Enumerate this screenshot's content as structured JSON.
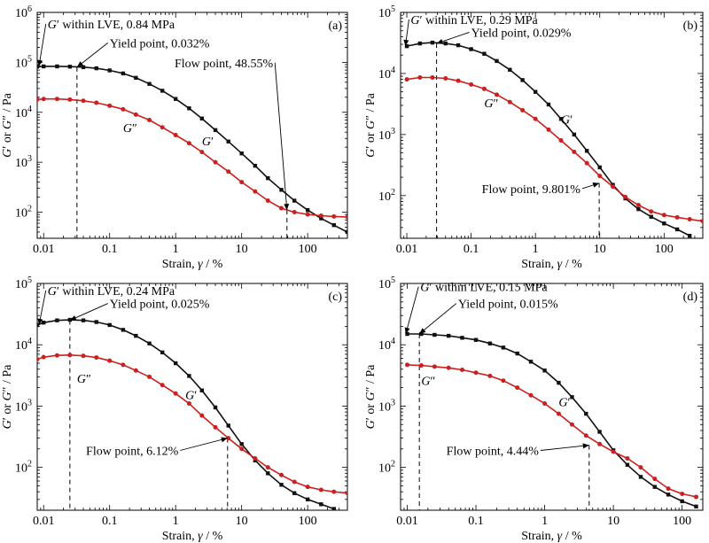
{
  "chart_data": [
    {
      "panel": "(a)",
      "type": "line",
      "xlabel_prefix": "Strain, ",
      "xlabel_var": "γ",
      "xlabel_unit": " / %",
      "ylabel": "G′ or G″ / Pa",
      "xscale": "log",
      "yscale": "log",
      "xlim": [
        0.008,
        400
      ],
      "ylim": [
        30,
        1000000
      ],
      "xticks": [
        0.01,
        0.1,
        1,
        10,
        100
      ],
      "xtick_labels": [
        "0.01",
        "0.1",
        "1",
        "10",
        "100"
      ],
      "yticks_exp": [
        2,
        3,
        4,
        5,
        6
      ],
      "series": [
        {
          "name": "G′",
          "color": "#111111",
          "marker": "square",
          "x": [
            0.008,
            0.01,
            0.016,
            0.025,
            0.04,
            0.063,
            0.1,
            0.16,
            0.25,
            0.4,
            0.63,
            1,
            1.6,
            2.5,
            4,
            6.3,
            10,
            16,
            25,
            40,
            63,
            100,
            160,
            250,
            400
          ],
          "y": [
            82000,
            83000,
            83000,
            82000,
            80000,
            76000,
            69000,
            60000,
            49000,
            37000,
            27000,
            18500,
            12000,
            7500,
            4400,
            2600,
            1500,
            850,
            480,
            280,
            170,
            110,
            75,
            55,
            40
          ]
        },
        {
          "name": "G″",
          "color": "#cc1f1f",
          "marker": "circle",
          "x": [
            0.008,
            0.01,
            0.016,
            0.025,
            0.04,
            0.063,
            0.1,
            0.16,
            0.25,
            0.4,
            0.63,
            1,
            1.6,
            2.5,
            4,
            6.3,
            10,
            16,
            25,
            40,
            63,
            100,
            160,
            250,
            400
          ],
          "y": [
            18000,
            18500,
            18500,
            18000,
            17000,
            15500,
            13500,
            11500,
            9000,
            7000,
            5000,
            3500,
            2400,
            1600,
            1000,
            650,
            400,
            260,
            170,
            120,
            100,
            90,
            85,
            82,
            80
          ]
        }
      ],
      "series_labels": [
        {
          "text": "G″",
          "x": 0.16,
          "y": 4000
        },
        {
          "text": "G′",
          "x": 2.5,
          "y": 2200
        }
      ],
      "annotations": [
        {
          "label": "G′ within LVE, 0.84 MPa",
          "text_x": 0.0115,
          "text_y": 480000,
          "point_x": 0.0085,
          "point_y": 83000,
          "text_anchor": "start"
        },
        {
          "label": "Yield point, 0.032%",
          "text_x": 0.1,
          "text_y": 200000,
          "point_x": 0.032,
          "point_y": 80000,
          "text_anchor": "start"
        },
        {
          "label": "Flow point, 48.55%",
          "text_x": 30,
          "text_y": 80000,
          "point_x": 48.55,
          "point_y": 110,
          "text_anchor": "end",
          "text_y_data": 80
        }
      ],
      "guides": [
        {
          "x": 0.032,
          "y_top": 80000
        },
        {
          "x": 48.55,
          "y_top": 110
        }
      ]
    },
    {
      "panel": "(b)",
      "type": "line",
      "xlabel_prefix": "Strain, ",
      "xlabel_var": "γ",
      "xlabel_unit": " / %",
      "ylabel": "G′ or G″ / Pa",
      "xscale": "log",
      "yscale": "log",
      "xlim": [
        0.008,
        400
      ],
      "ylim": [
        20,
        100000
      ],
      "xticks": [
        0.01,
        0.1,
        1,
        10,
        100
      ],
      "xtick_labels": [
        "0.01",
        "0.1",
        "1",
        "10",
        "100"
      ],
      "yticks_exp": [
        2,
        3,
        4,
        5
      ],
      "series": [
        {
          "name": "G′",
          "color": "#111111",
          "marker": "square",
          "x": [
            0.01,
            0.016,
            0.025,
            0.04,
            0.063,
            0.1,
            0.16,
            0.25,
            0.4,
            0.63,
            1,
            1.6,
            2.5,
            4,
            6.3,
            10,
            16,
            25,
            40,
            63,
            100,
            160,
            250
          ],
          "y": [
            28000,
            31000,
            32000,
            31000,
            29000,
            25000,
            21000,
            16000,
            11500,
            7800,
            5000,
            3100,
            1800,
            1000,
            540,
            290,
            150,
            90,
            60,
            45,
            35,
            28,
            22
          ]
        },
        {
          "name": "G″",
          "color": "#cc1f1f",
          "marker": "circle",
          "x": [
            0.01,
            0.016,
            0.025,
            0.04,
            0.063,
            0.1,
            0.16,
            0.25,
            0.4,
            0.63,
            1,
            1.6,
            2.5,
            4,
            6.3,
            10,
            16,
            25,
            40,
            63,
            100,
            160,
            250,
            400
          ],
          "y": [
            8000,
            8600,
            8600,
            8300,
            7600,
            6600,
            5600,
            4500,
            3400,
            2500,
            1800,
            1200,
            800,
            520,
            340,
            210,
            140,
            95,
            70,
            55,
            48,
            44,
            41,
            38
          ]
        }
      ],
      "series_labels": [
        {
          "text": "G″",
          "x": 0.16,
          "y": 2800
        },
        {
          "text": "G′",
          "x": 2.5,
          "y": 1500
        }
      ],
      "annotations": [
        {
          "label": "G′ within LVE, 0.29 MPa",
          "text_x": 0.0115,
          "text_y": 65000,
          "point_x": 0.0095,
          "point_y": 28000,
          "text_anchor": "start"
        },
        {
          "label": "Yield point, 0.029%",
          "text_x": 0.1,
          "text_y": 40000,
          "point_x": 0.029,
          "point_y": 31000,
          "text_anchor": "start"
        },
        {
          "label": "Flow point, 9.801%",
          "text_x": 5,
          "text_y": 110,
          "point_x": 9.801,
          "point_y": 160,
          "text_anchor": "end"
        }
      ],
      "guides": [
        {
          "x": 0.029,
          "y_top": 31000
        },
        {
          "x": 9.801,
          "y_top": 160
        }
      ]
    },
    {
      "panel": "(c)",
      "type": "line",
      "xlabel_prefix": "Strain, ",
      "xlabel_var": "γ",
      "xlabel_unit": " / %",
      "ylabel": "G′ or G″ / Pa",
      "xscale": "log",
      "yscale": "log",
      "xlim": [
        0.008,
        400
      ],
      "ylim": [
        20,
        100000
      ],
      "xticks": [
        0.01,
        0.1,
        1,
        10,
        100
      ],
      "xtick_labels": [
        "0.01",
        "0.1",
        "1",
        "10",
        "100"
      ],
      "yticks_exp": [
        2,
        3,
        4,
        5
      ],
      "series": [
        {
          "name": "G′",
          "color": "#111111",
          "marker": "square",
          "x": [
            0.008,
            0.01,
            0.016,
            0.025,
            0.04,
            0.063,
            0.1,
            0.16,
            0.25,
            0.4,
            0.63,
            1,
            1.6,
            2.5,
            4,
            6.3,
            10,
            16,
            25,
            40,
            63,
            100,
            160,
            250
          ],
          "y": [
            21000,
            23000,
            25000,
            25500,
            25000,
            23500,
            21000,
            17500,
            14000,
            10500,
            7500,
            5000,
            3100,
            1800,
            950,
            480,
            240,
            130,
            80,
            52,
            38,
            30,
            25,
            21
          ]
        },
        {
          "name": "G″",
          "color": "#cc1f1f",
          "marker": "circle",
          "x": [
            0.008,
            0.01,
            0.016,
            0.025,
            0.04,
            0.063,
            0.1,
            0.16,
            0.25,
            0.4,
            0.63,
            1,
            1.6,
            2.5,
            4,
            6.3,
            10,
            16,
            25,
            40,
            63,
            100,
            160,
            250,
            400
          ],
          "y": [
            5800,
            6300,
            6700,
            6800,
            6600,
            6200,
            5500,
            4700,
            3800,
            3000,
            2200,
            1600,
            1100,
            700,
            450,
            300,
            200,
            140,
            100,
            75,
            58,
            48,
            43,
            40,
            38
          ]
        }
      ],
      "series_labels": [
        {
          "text": "G″",
          "x": 0.032,
          "y": 2400
        },
        {
          "text": "G′",
          "x": 1.4,
          "y": 1300
        }
      ],
      "annotations": [
        {
          "label": "G′ within LVE, 0.24 MPa",
          "text_x": 0.0115,
          "text_y": 65000,
          "point_x": 0.0085,
          "point_y": 21000,
          "text_anchor": "start"
        },
        {
          "label": "Yield point, 0.025%",
          "text_x": 0.1,
          "text_y": 40000,
          "point_x": 0.025,
          "point_y": 25000,
          "text_anchor": "start"
        },
        {
          "label": "Flow point, 6.12%",
          "text_x": 1.1,
          "text_y": 160,
          "point_x": 6.12,
          "point_y": 300,
          "text_anchor": "end"
        }
      ],
      "guides": [
        {
          "x": 0.025,
          "y_top": 25000
        },
        {
          "x": 6.12,
          "y_top": 300
        }
      ]
    },
    {
      "panel": "(d)",
      "type": "line",
      "xlabel_prefix": "Strain, ",
      "xlabel_var": "γ",
      "xlabel_unit": " / %",
      "ylabel": "G′ or G″ / Pa",
      "xscale": "log",
      "yscale": "log",
      "xlim": [
        0.008,
        200
      ],
      "ylim": [
        20,
        100000
      ],
      "xticks": [
        0.01,
        0.1,
        1,
        10,
        100
      ],
      "xtick_labels": [
        "0.01",
        "0.1",
        "1",
        "10",
        "100"
      ],
      "yticks_exp": [
        2,
        3,
        4,
        5
      ],
      "series": [
        {
          "name": "G′",
          "color": "#111111",
          "marker": "square",
          "x": [
            0.01,
            0.016,
            0.025,
            0.04,
            0.063,
            0.1,
            0.16,
            0.25,
            0.4,
            0.63,
            1,
            1.6,
            2.5,
            4,
            6.3,
            10,
            16,
            25,
            40,
            63,
            100,
            160
          ],
          "y": [
            15000,
            15000,
            14500,
            14000,
            13000,
            12000,
            10500,
            9000,
            7200,
            5300,
            3800,
            2400,
            1400,
            750,
            380,
            190,
            110,
            70,
            48,
            36,
            28,
            23
          ]
        },
        {
          "name": "G″",
          "color": "#cc1f1f",
          "marker": "circle",
          "x": [
            0.01,
            0.016,
            0.025,
            0.04,
            0.063,
            0.1,
            0.16,
            0.25,
            0.4,
            0.63,
            1,
            1.6,
            2.5,
            4,
            6.3,
            10,
            16,
            25,
            40,
            63,
            100,
            160
          ],
          "y": [
            4700,
            4600,
            4400,
            4200,
            3900,
            3500,
            3100,
            2600,
            2000,
            1500,
            1100,
            750,
            500,
            330,
            240,
            180,
            140,
            100,
            65,
            45,
            37,
            33
          ]
        }
      ],
      "series_labels": [
        {
          "text": "G″",
          "x": 0.016,
          "y": 2200
        },
        {
          "text": "G′",
          "x": 1.6,
          "y": 1000
        }
      ],
      "annotations": [
        {
          "label": "G′ within LVE, 0.15 MPa",
          "text_x": 0.0155,
          "text_y": 75000,
          "point_x": 0.0095,
          "point_y": 15000,
          "text_anchor": "start"
        },
        {
          "label": "Yield point, 0.015%",
          "text_x": 0.055,
          "text_y": 40000,
          "point_x": 0.015,
          "point_y": 15000,
          "text_anchor": "start"
        },
        {
          "label": "Flow point, 4.44%",
          "text_x": 0.82,
          "text_y": 160,
          "point_x": 4.44,
          "point_y": 230,
          "text_anchor": "end"
        }
      ],
      "guides": [
        {
          "x": 0.015,
          "y_top": 15000
        },
        {
          "x": 4.44,
          "y_top": 230
        }
      ]
    }
  ]
}
